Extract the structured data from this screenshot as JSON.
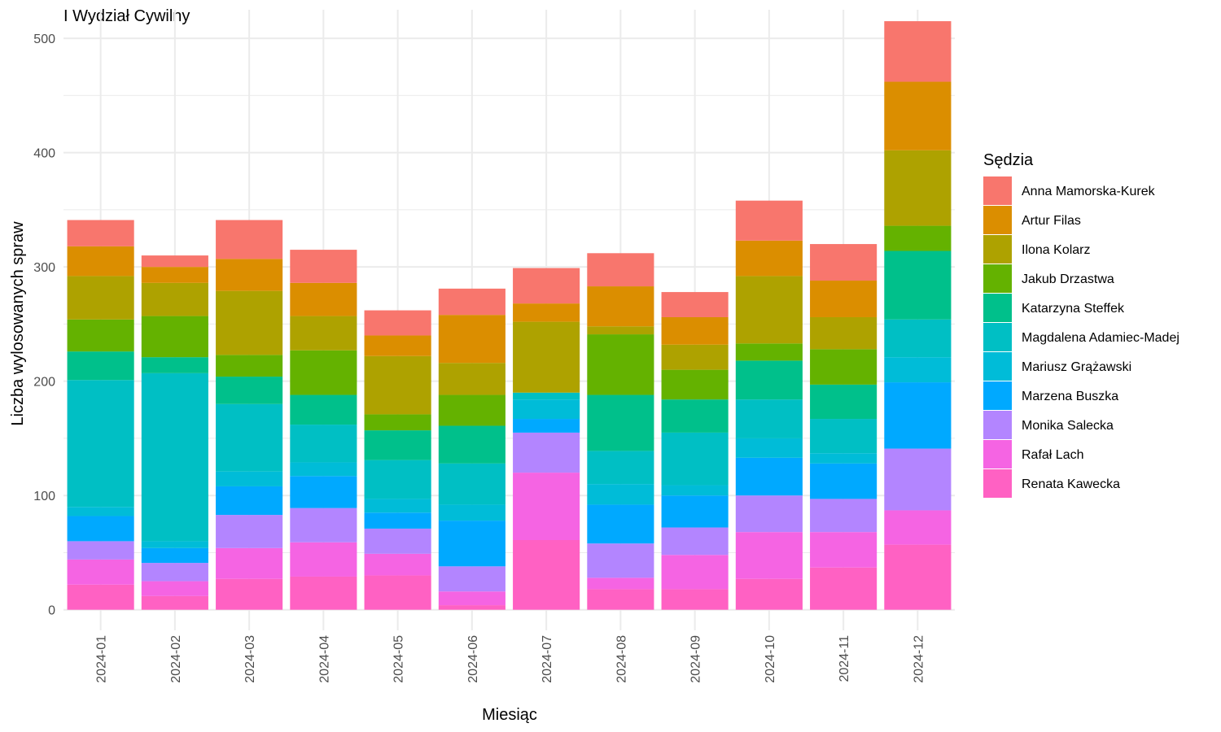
{
  "chart_data": {
    "type": "bar",
    "stacked": true,
    "title": "I Wydział Cywilny",
    "xlabel": "Miesiąc",
    "ylabel": "Liczba wylosowanych spraw",
    "ylim": [
      -18,
      525
    ],
    "yticks": [
      0,
      100,
      200,
      300,
      400,
      500
    ],
    "grid": true,
    "legend_title": "Sędzia",
    "legend_position": "right",
    "categories": [
      "2024-01",
      "2024-02",
      "2024-03",
      "2024-04",
      "2024-05",
      "2024-06",
      "2024-07",
      "2024-08",
      "2024-09",
      "2024-10",
      "2024-11",
      "2024-12"
    ],
    "series": [
      {
        "name": "Renata Kawecka",
        "color": "#FF61C3",
        "values": [
          22,
          12,
          27,
          29,
          30,
          4,
          61,
          18,
          18,
          27,
          37,
          57
        ]
      },
      {
        "name": "Rafał Lach",
        "color": "#F564E3",
        "values": [
          22,
          13,
          27,
          30,
          19,
          12,
          59,
          10,
          30,
          41,
          31,
          30
        ]
      },
      {
        "name": "Monika Salecka",
        "color": "#B385FF",
        "values": [
          16,
          16,
          29,
          30,
          22,
          22,
          35,
          30,
          24,
          32,
          29,
          54
        ]
      },
      {
        "name": "Marzena Buszka",
        "color": "#00A9FF",
        "values": [
          22,
          13,
          25,
          28,
          14,
          40,
          12,
          34,
          28,
          33,
          31,
          58
        ]
      },
      {
        "name": "Mariusz Grążawski",
        "color": "#00BCD8",
        "values": [
          8,
          6,
          13,
          12,
          12,
          14,
          17,
          18,
          9,
          17,
          9,
          22
        ]
      },
      {
        "name": "Magdalena Adamiec-Madej",
        "color": "#00BFC4",
        "values": [
          111,
          147,
          59,
          33,
          34,
          36,
          6,
          29,
          46,
          34,
          30,
          33
        ]
      },
      {
        "name": "Katarzyna Steffek",
        "color": "#00C08B",
        "values": [
          25,
          14,
          24,
          26,
          26,
          33,
          0,
          49,
          29,
          34,
          30,
          60
        ]
      },
      {
        "name": "Jakub Drzastwa",
        "color": "#64B200",
        "values": [
          28,
          36,
          19,
          39,
          14,
          27,
          0,
          53,
          26,
          15,
          31,
          22
        ]
      },
      {
        "name": "Ilona Kolarz",
        "color": "#AEA200",
        "values": [
          38,
          29,
          56,
          30,
          51,
          28,
          62,
          7,
          22,
          59,
          28,
          66
        ]
      },
      {
        "name": "Artur Filas",
        "color": "#DB8E00",
        "values": [
          26,
          14,
          28,
          29,
          18,
          42,
          16,
          35,
          24,
          31,
          32,
          60
        ]
      },
      {
        "name": "Anna Mamorska-Kurek",
        "color": "#F8766D",
        "values": [
          23,
          10,
          34,
          29,
          22,
          23,
          31,
          29,
          22,
          35,
          32,
          53
        ]
      }
    ],
    "legend_order": [
      "Anna Mamorska-Kurek",
      "Artur Filas",
      "Ilona Kolarz",
      "Jakub Drzastwa",
      "Katarzyna Steffek",
      "Magdalena Adamiec-Madej",
      "Mariusz Grążawski",
      "Marzena Buszka",
      "Monika Salecka",
      "Rafał Lach",
      "Renata Kawecka"
    ]
  }
}
